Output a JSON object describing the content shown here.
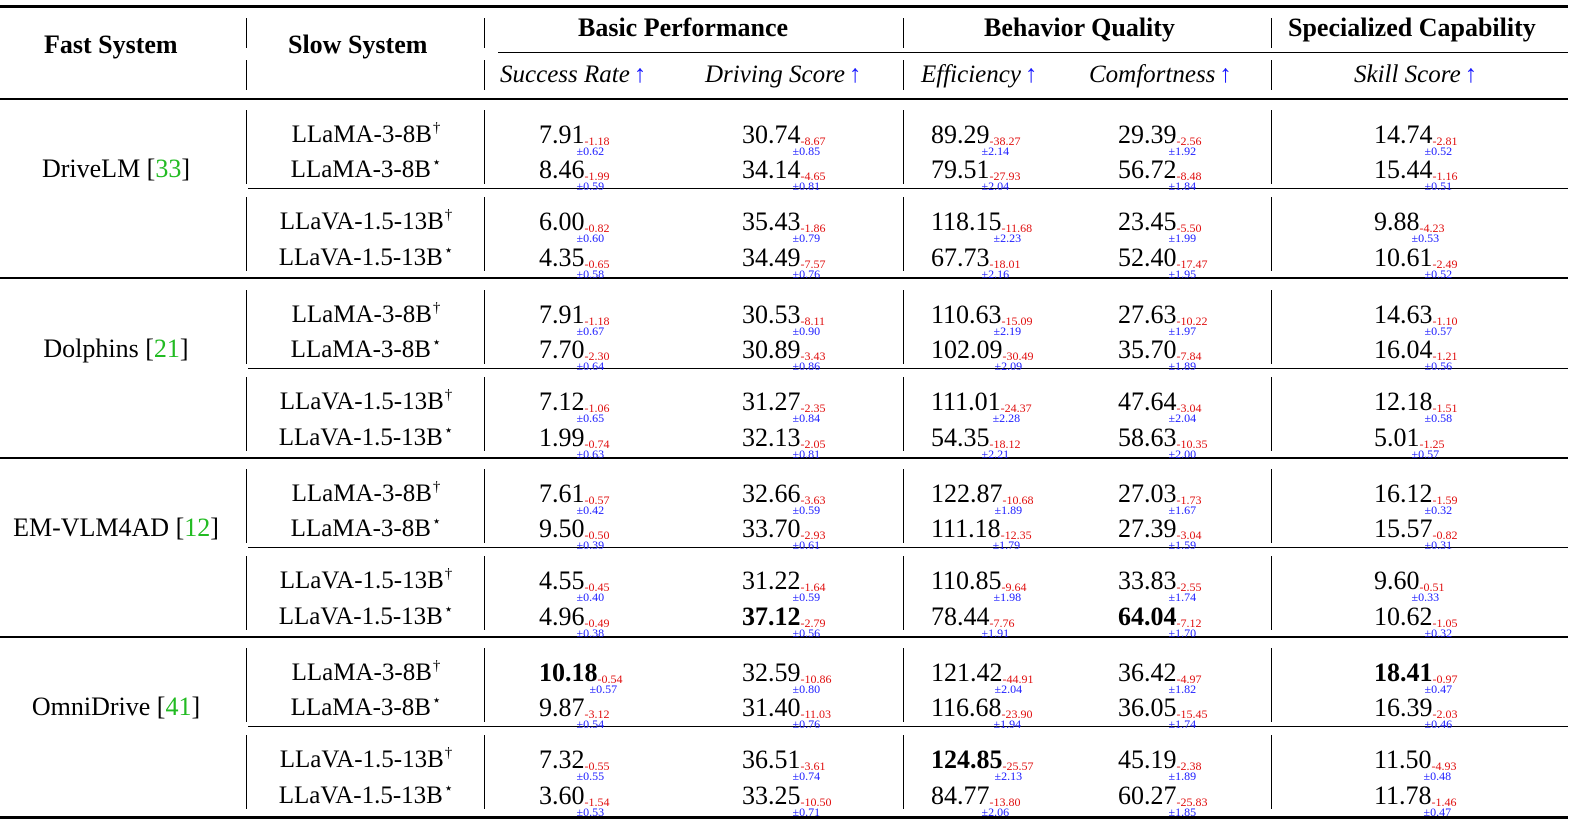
{
  "header": {
    "fast_system": "Fast System",
    "slow_system": "Slow System",
    "groups": [
      "Basic Performance",
      "Behavior Quality",
      "Specialized Capability"
    ],
    "metrics": [
      "Success Rate",
      "Driving Score",
      "Efficiency",
      "Comfortness",
      "Skill Score"
    ],
    "arrow": "↑"
  },
  "groups": [
    {
      "fast_name": "DriveLM [",
      "cite": "33",
      "close": "]",
      "rows": [
        {
          "slow": "LLaMA-3-8B",
          "mark": "†",
          "cells": [
            {
              "v": "7.91",
              "d": "-1.18",
              "s": "±0.62"
            },
            {
              "v": "30.74",
              "d": "-8.67",
              "s": "±0.85"
            },
            {
              "v": "89.29",
              "d": "-38.27",
              "s": "±2.14"
            },
            {
              "v": "29.39",
              "d": "-2.56",
              "s": "±1.92"
            },
            {
              "v": "14.74",
              "d": "-2.81",
              "s": "±0.52"
            }
          ]
        },
        {
          "slow": "LLaMA-3-8B",
          "mark": "⋆",
          "cells": [
            {
              "v": "8.46",
              "d": "-1.99",
              "s": "±0.59"
            },
            {
              "v": "34.14",
              "d": "-4.65",
              "s": "±0.81"
            },
            {
              "v": "79.51",
              "d": "-27.93",
              "s": "±2.04"
            },
            {
              "v": "56.72",
              "d": "-8.48",
              "s": "±1.84"
            },
            {
              "v": "15.44",
              "d": "-1.16",
              "s": "±0.51"
            }
          ]
        },
        {
          "slow": "LLaVA-1.5-13B",
          "mark": "†",
          "cells": [
            {
              "v": "6.00",
              "d": "-0.82",
              "s": "±0.60"
            },
            {
              "v": "35.43",
              "d": "-1.86",
              "s": "±0.79"
            },
            {
              "v": "118.15",
              "d": "-11.68",
              "s": "±2.23"
            },
            {
              "v": "23.45",
              "d": "-5.50",
              "s": "±1.99"
            },
            {
              "v": "9.88",
              "d": "-4.23",
              "s": "±0.53"
            }
          ]
        },
        {
          "slow": "LLaVA-1.5-13B",
          "mark": "⋆",
          "cells": [
            {
              "v": "4.35",
              "d": "-0.65",
              "s": "±0.58"
            },
            {
              "v": "34.49",
              "d": "-7.57",
              "s": "±0.76"
            },
            {
              "v": "67.73",
              "d": "-18.01",
              "s": "±2.16"
            },
            {
              "v": "52.40",
              "d": "-17.47",
              "s": "±1.95"
            },
            {
              "v": "10.61",
              "d": "-2.49",
              "s": "±0.52"
            }
          ]
        }
      ]
    },
    {
      "fast_name": "Dolphins [",
      "cite": "21",
      "close": "]",
      "rows": [
        {
          "slow": "LLaMA-3-8B",
          "mark": "†",
          "cells": [
            {
              "v": "7.91",
              "d": "-1.18",
              "s": "±0.67"
            },
            {
              "v": "30.53",
              "d": "-8.11",
              "s": "±0.90"
            },
            {
              "v": "110.63",
              "d": "-15.09",
              "s": "±2.19"
            },
            {
              "v": "27.63",
              "d": "-10.22",
              "s": "±1.97"
            },
            {
              "v": "14.63",
              "d": "-1.10",
              "s": "±0.57"
            }
          ]
        },
        {
          "slow": "LLaMA-3-8B",
          "mark": "⋆",
          "cells": [
            {
              "v": "7.70",
              "d": "-2.30",
              "s": "±0.64"
            },
            {
              "v": "30.89",
              "d": "-3.43",
              "s": "±0.86"
            },
            {
              "v": "102.09",
              "d": "-30.49",
              "s": "±2.09"
            },
            {
              "v": "35.70",
              "d": "-7.84",
              "s": "±1.89"
            },
            {
              "v": "16.04",
              "d": "-1.21",
              "s": "±0.56"
            }
          ]
        },
        {
          "slow": "LLaVA-1.5-13B",
          "mark": "†",
          "cells": [
            {
              "v": "7.12",
              "d": "-1.06",
              "s": "±0.65"
            },
            {
              "v": "31.27",
              "d": "-2.35",
              "s": "±0.84"
            },
            {
              "v": "111.01",
              "d": "-24.37",
              "s": "±2.28"
            },
            {
              "v": "47.64",
              "d": "-3.04",
              "s": "±2.04"
            },
            {
              "v": "12.18",
              "d": "-1.51",
              "s": "±0.58"
            }
          ]
        },
        {
          "slow": "LLaVA-1.5-13B",
          "mark": "⋆",
          "cells": [
            {
              "v": "1.99",
              "d": "-0.74",
              "s": "±0.63"
            },
            {
              "v": "32.13",
              "d": "-2.05",
              "s": "±0.81"
            },
            {
              "v": "54.35",
              "d": "-18.12",
              "s": "±2.21"
            },
            {
              "v": "58.63",
              "d": "-10.35",
              "s": "±2.00"
            },
            {
              "v": "5.01",
              "d": "-1.25",
              "s": "±0.57"
            }
          ]
        }
      ]
    },
    {
      "fast_name": "EM-VLM4AD [",
      "cite": "12",
      "close": "]",
      "rows": [
        {
          "slow": "LLaMA-3-8B",
          "mark": "†",
          "cells": [
            {
              "v": "7.61",
              "d": "-0.57",
              "s": "±0.42"
            },
            {
              "v": "32.66",
              "d": "-3.63",
              "s": "±0.59"
            },
            {
              "v": "122.87",
              "d": "-10.68",
              "s": "±1.89"
            },
            {
              "v": "27.03",
              "d": "-1.73",
              "s": "±1.67"
            },
            {
              "v": "16.12",
              "d": "-1.59",
              "s": "±0.32"
            }
          ]
        },
        {
          "slow": "LLaMA-3-8B",
          "mark": "⋆",
          "cells": [
            {
              "v": "9.50",
              "d": "-0.50",
              "s": "±0.39"
            },
            {
              "v": "33.70",
              "d": "-2.93",
              "s": "±0.61"
            },
            {
              "v": "111.18",
              "d": "-12.35",
              "s": "±1.79"
            },
            {
              "v": "27.39",
              "d": "-3.04",
              "s": "±1.59"
            },
            {
              "v": "15.57",
              "d": "-0.82",
              "s": "±0.31"
            }
          ]
        },
        {
          "slow": "LLaVA-1.5-13B",
          "mark": "†",
          "cells": [
            {
              "v": "4.55",
              "d": "-0.45",
              "s": "±0.40"
            },
            {
              "v": "31.22",
              "d": "-1.64",
              "s": "±0.59"
            },
            {
              "v": "110.85",
              "d": "-9.64",
              "s": "±1.98"
            },
            {
              "v": "33.83",
              "d": "-2.55",
              "s": "±1.74"
            },
            {
              "v": "9.60",
              "d": "-0.51",
              "s": "±0.33"
            }
          ]
        },
        {
          "slow": "LLaVA-1.5-13B",
          "mark": "⋆",
          "cells": [
            {
              "v": "4.96",
              "d": "-0.49",
              "s": "±0.38"
            },
            {
              "v": "37.12",
              "d": "-2.79",
              "s": "±0.56",
              "bold": true
            },
            {
              "v": "78.44",
              "d": "-7.76",
              "s": "±1.91"
            },
            {
              "v": "64.04",
              "d": "-7.12",
              "s": "±1.70",
              "bold": true
            },
            {
              "v": "10.62",
              "d": "-1.05",
              "s": "±0.32"
            }
          ]
        }
      ]
    },
    {
      "fast_name": "OmniDrive [",
      "cite": "41",
      "close": "]",
      "rows": [
        {
          "slow": "LLaMA-3-8B",
          "mark": "†",
          "cells": [
            {
              "v": "10.18",
              "d": "-0.54",
              "s": "±0.57",
              "bold": true
            },
            {
              "v": "32.59",
              "d": "-10.86",
              "s": "±0.80"
            },
            {
              "v": "121.42",
              "d": "-44.91",
              "s": "±2.04"
            },
            {
              "v": "36.42",
              "d": "-4.97",
              "s": "±1.82"
            },
            {
              "v": "18.41",
              "d": "-0.97",
              "s": "±0.47",
              "bold": true
            }
          ]
        },
        {
          "slow": "LLaMA-3-8B",
          "mark": "⋆",
          "cells": [
            {
              "v": "9.87",
              "d": "-3.12",
              "s": "±0.54"
            },
            {
              "v": "31.40",
              "d": "-11.03",
              "s": "±0.76"
            },
            {
              "v": "116.68",
              "d": "-23.90",
              "s": "±1.94"
            },
            {
              "v": "36.05",
              "d": "-15.45",
              "s": "±1.74"
            },
            {
              "v": "16.39",
              "d": "-2.03",
              "s": "±0.46"
            }
          ]
        },
        {
          "slow": "LLaVA-1.5-13B",
          "mark": "†",
          "cells": [
            {
              "v": "7.32",
              "d": "-0.55",
              "s": "±0.55"
            },
            {
              "v": "36.51",
              "d": "-3.61",
              "s": "±0.74"
            },
            {
              "v": "124.85",
              "d": "-25.57",
              "s": "±2.13",
              "bold": true
            },
            {
              "v": "45.19",
              "d": "-2.38",
              "s": "±1.89"
            },
            {
              "v": "11.50",
              "d": "-4.93",
              "s": "±0.48"
            }
          ]
        },
        {
          "slow": "LLaVA-1.5-13B",
          "mark": "⋆",
          "cells": [
            {
              "v": "3.60",
              "d": "-1.54",
              "s": "±0.53"
            },
            {
              "v": "33.25",
              "d": "-10.50",
              "s": "±0.71"
            },
            {
              "v": "84.77",
              "d": "-13.80",
              "s": "±2.06"
            },
            {
              "v": "60.27",
              "d": "-25.83",
              "s": "±1.85"
            },
            {
              "v": "11.78",
              "d": "-1.46",
              "s": "±0.47"
            }
          ]
        }
      ]
    }
  ]
}
